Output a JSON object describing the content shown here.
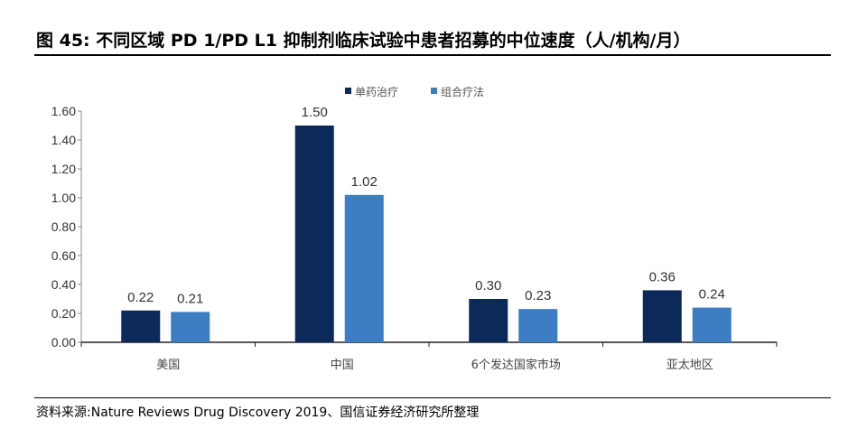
{
  "title": "图 45: 不同区域 PD 1/PD L1 抑制剂临床试验中患者招募的中位速度（人/机构/月）",
  "source": "资料来源:Nature Reviews Drug Discovery 2019、国信证券经济研究所整理",
  "chart_data": {
    "type": "bar",
    "categories": [
      "美国",
      "中国",
      "6个发达国家市场",
      "亚太地区"
    ],
    "series": [
      {
        "name": "单药治疗",
        "values": [
          0.22,
          1.5,
          0.3,
          0.36
        ],
        "color": "#0b2a5a"
      },
      {
        "name": "组合疗法",
        "values": [
          0.21,
          1.02,
          0.23,
          0.24
        ],
        "color": "#3c7dc4"
      }
    ],
    "ylim": [
      0,
      1.6
    ],
    "yticks": [
      "0.00",
      "0.20",
      "0.40",
      "0.60",
      "0.80",
      "1.00",
      "1.20",
      "1.40",
      "1.60"
    ],
    "grid": false,
    "legend": "top-center"
  }
}
